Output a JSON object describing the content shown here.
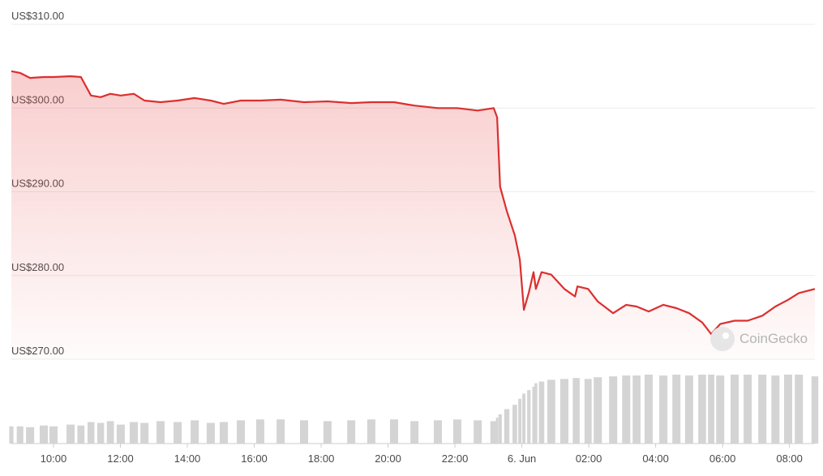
{
  "chart_data": {
    "type": "line",
    "watermark": "CoinGecko",
    "x": [
      8.74,
      9.0,
      9.3,
      9.71,
      10,
      10.51,
      10.82,
      11.12,
      11.41,
      11.7,
      12.01,
      12.4,
      12.72,
      13.2,
      13.71,
      14.22,
      14.7,
      15.09,
      15.6,
      16.18,
      16.79,
      17.49,
      18.19,
      18.9,
      19.5,
      20.18,
      20.79,
      21.49,
      22.07,
      22.68,
      23.16,
      23.26,
      23.35,
      23.55,
      23.79,
      23.94,
      24.06,
      24.21,
      24.35,
      24.42,
      24.59,
      24.88,
      25.27,
      25.59,
      25.66,
      25.98,
      26.27,
      26.73,
      27.12,
      27.43,
      27.79,
      28.23,
      28.62,
      29.0,
      29.39,
      29.66,
      29.93,
      30.36,
      30.75,
      31.19,
      31.58,
      31.96,
      32.28,
      32.76
    ],
    "series": [
      {
        "color": "#dc2f2f",
        "values": [
          304.4,
          304.2,
          303.6,
          303.7,
          303.7,
          303.8,
          303.7,
          301.5,
          301.3,
          301.7,
          301.5,
          301.7,
          300.9,
          300.7,
          300.9,
          301.2,
          300.9,
          300.5,
          300.9,
          300.9,
          301.0,
          300.7,
          300.8,
          300.6,
          300.7,
          300.7,
          300.3,
          300.0,
          300.0,
          299.7,
          300.0,
          298.9,
          290.6,
          287.7,
          284.8,
          281.9,
          275.9,
          278.0,
          280.4,
          278.4,
          280.4,
          280.1,
          278.4,
          277.5,
          278.7,
          278.4,
          276.9,
          275.5,
          276.5,
          276.3,
          275.7,
          276.5,
          276.1,
          275.5,
          274.4,
          273.0,
          274.2,
          274.6,
          274.6,
          275.2,
          276.3,
          277.1,
          277.9,
          278.4
        ]
      },
      {
        "type": "bar",
        "color": "#d4d4d4",
        "values": [
          20,
          20,
          19,
          21,
          20,
          22,
          21,
          25,
          24,
          26,
          22,
          25,
          24,
          26,
          25,
          27,
          24,
          25,
          27,
          28,
          28,
          27,
          26,
          27,
          28,
          28,
          26,
          27,
          28,
          27,
          26,
          30,
          34,
          40,
          45,
          52,
          58,
          62,
          66,
          70,
          72,
          74,
          75,
          76,
          76,
          75,
          77,
          78,
          79,
          79,
          80,
          79,
          80,
          79,
          80,
          80,
          79,
          80,
          80,
          80,
          79,
          80,
          80,
          78
        ]
      }
    ],
    "xlim": [
      8.74,
      32.76
    ],
    "xticks": [
      {
        "value": 10,
        "label": "10:00"
      },
      {
        "value": 12,
        "label": "12:00"
      },
      {
        "value": 14,
        "label": "14:00"
      },
      {
        "value": 16,
        "label": "16:00"
      },
      {
        "value": 18,
        "label": "18:00"
      },
      {
        "value": 20,
        "label": "20:00"
      },
      {
        "value": 22,
        "label": "22:00"
      },
      {
        "value": 24,
        "label": "6. Jun"
      },
      {
        "value": 26,
        "label": "02:00"
      },
      {
        "value": 28,
        "label": "04:00"
      },
      {
        "value": 30,
        "label": "06:00"
      },
      {
        "value": 32,
        "label": "08:00"
      }
    ],
    "ylim": [
      270,
      310
    ],
    "yticks": [
      {
        "value": 270,
        "label": "US$270.00"
      },
      {
        "value": 280,
        "label": "US$280.00"
      },
      {
        "value": 290,
        "label": "US$290.00"
      },
      {
        "value": 300,
        "label": "US$300.00"
      },
      {
        "value": 310,
        "label": "US$310.00"
      }
    ],
    "grid": true
  }
}
